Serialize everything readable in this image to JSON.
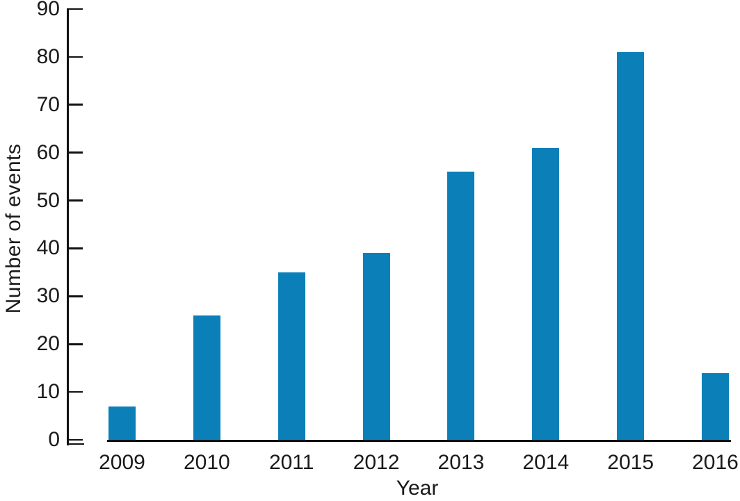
{
  "chart_data": {
    "type": "bar",
    "title": "",
    "categories": [
      "2009",
      "2010",
      "2011",
      "2012",
      "2013",
      "2014",
      "2015",
      "2016"
    ],
    "values": [
      7,
      26,
      35,
      39,
      56,
      61,
      81,
      14
    ],
    "xlabel": "Year",
    "ylabel": "Number of events",
    "ylim": [
      0,
      90
    ],
    "yticks": [
      0,
      10,
      20,
      30,
      40,
      50,
      60,
      70,
      80,
      90
    ],
    "grid": false,
    "legend": null,
    "bar_color": "#0b80b8",
    "axis_color": "#111111",
    "text_color": "#1a1a1a",
    "background_color": "#ffffff"
  }
}
